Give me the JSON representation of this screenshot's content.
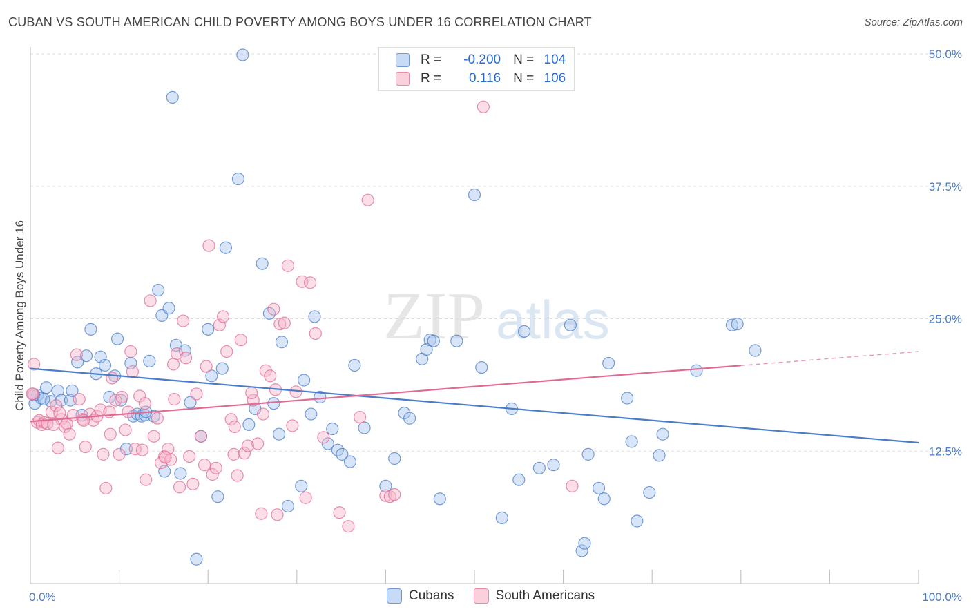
{
  "title": "CUBAN VS SOUTH AMERICAN CHILD POVERTY AMONG BOYS UNDER 16 CORRELATION CHART",
  "source": "Source: ZipAtlas.com",
  "watermark": {
    "zip": "ZIP",
    "atlas": "atlas"
  },
  "legend": {
    "rows": [
      {
        "r_label": "R =",
        "r_value": "-0.200",
        "n_label": "N =",
        "n_value": "104",
        "color": "#a8c6f0"
      },
      {
        "r_label": "R =",
        "r_value": "0.116",
        "n_label": "N =",
        "n_value": "106",
        "color": "#f7b6c9"
      }
    ]
  },
  "chart_data": {
    "type": "scatter",
    "title": "CUBAN VS SOUTH AMERICAN CHILD POVERTY AMONG BOYS UNDER 16 CORRELATION CHART",
    "xlabel": "",
    "ylabel": "Child Poverty Among Boys Under 16",
    "xlim": [
      0,
      100
    ],
    "ylim": [
      0,
      50
    ],
    "x_tick_labels": [
      "0.0%",
      "100.0%"
    ],
    "y_ticks": [
      12.5,
      25.0,
      37.5,
      50.0
    ],
    "y_tick_labels": [
      "12.5%",
      "25.0%",
      "37.5%",
      "50.0%"
    ],
    "grid": true,
    "legend_placement": "bottom",
    "series": [
      {
        "name": "Cubans",
        "color": "#4a7cc7",
        "fill": "#a8c6f0",
        "trend": {
          "x": [
            0,
            100
          ],
          "y": [
            20.3,
            13.3
          ],
          "solid_until": 100
        },
        "points": [
          [
            0.5,
            17.0
          ],
          [
            0.8,
            17.8
          ],
          [
            1.2,
            17.5
          ],
          [
            1.8,
            18.5
          ],
          [
            2.3,
            17.2
          ],
          [
            3.1,
            18.2
          ],
          [
            3.5,
            17.3
          ],
          [
            4.5,
            17.3
          ],
          [
            4.7,
            18.2
          ],
          [
            5.3,
            20.9
          ],
          [
            5.8,
            15.9
          ],
          [
            6.3,
            21.5
          ],
          [
            6.8,
            24.0
          ],
          [
            7.4,
            19.8
          ],
          [
            7.9,
            21.4
          ],
          [
            8.4,
            20.6
          ],
          [
            8.9,
            17.6
          ],
          [
            9.5,
            19.6
          ],
          [
            9.8,
            23.1
          ],
          [
            10.2,
            17.3
          ],
          [
            10.8,
            12.7
          ],
          [
            11.3,
            20.8
          ],
          [
            11.6,
            15.8
          ],
          [
            12.0,
            16.0
          ],
          [
            12.5,
            15.8
          ],
          [
            12.9,
            15.9
          ],
          [
            13.4,
            21.0
          ],
          [
            13.9,
            15.8
          ],
          [
            14.4,
            27.7
          ],
          [
            14.8,
            25.3
          ],
          [
            15.1,
            10.6
          ],
          [
            15.6,
            26.0
          ],
          [
            16.0,
            45.9
          ],
          [
            16.4,
            22.5
          ],
          [
            16.9,
            10.4
          ],
          [
            17.4,
            22.0
          ],
          [
            18.0,
            17.1
          ],
          [
            18.7,
            2.3
          ],
          [
            19.2,
            13.9
          ],
          [
            20.0,
            24.0
          ],
          [
            20.4,
            19.6
          ],
          [
            21.1,
            8.2
          ],
          [
            21.6,
            20.3
          ],
          [
            22.0,
            31.7
          ],
          [
            23.4,
            38.2
          ],
          [
            23.9,
            49.9
          ],
          [
            24.6,
            15.0
          ],
          [
            25.3,
            16.5
          ],
          [
            26.1,
            30.2
          ],
          [
            26.9,
            25.5
          ],
          [
            27.4,
            17.0
          ],
          [
            28.0,
            14.1
          ],
          [
            28.3,
            22.8
          ],
          [
            29.0,
            7.3
          ],
          [
            30.5,
            9.2
          ],
          [
            30.8,
            19.2
          ],
          [
            31.6,
            16.0
          ],
          [
            32.0,
            25.2
          ],
          [
            32.6,
            17.6
          ],
          [
            33.5,
            13.2
          ],
          [
            34.0,
            14.6
          ],
          [
            34.6,
            12.6
          ],
          [
            35.1,
            12.2
          ],
          [
            36.0,
            11.5
          ],
          [
            36.5,
            20.6
          ],
          [
            37.6,
            14.7
          ],
          [
            40.0,
            9.2
          ],
          [
            41.0,
            11.8
          ],
          [
            42.1,
            16.1
          ],
          [
            42.7,
            15.6
          ],
          [
            44.1,
            21.2
          ],
          [
            44.6,
            22.1
          ],
          [
            45.0,
            23.0
          ],
          [
            45.4,
            22.9
          ],
          [
            46.1,
            8.0
          ],
          [
            48.0,
            22.9
          ],
          [
            50.0,
            36.7
          ],
          [
            50.8,
            20.4
          ],
          [
            53.1,
            6.2
          ],
          [
            54.2,
            16.5
          ],
          [
            55.0,
            9.8
          ],
          [
            55.6,
            23.8
          ],
          [
            57.3,
            10.9
          ],
          [
            58.9,
            11.2
          ],
          [
            60.8,
            24.4
          ],
          [
            62.1,
            3.1
          ],
          [
            62.4,
            3.8
          ],
          [
            62.8,
            12.2
          ],
          [
            64.0,
            9.0
          ],
          [
            64.6,
            8.0
          ],
          [
            65.1,
            20.8
          ],
          [
            67.2,
            17.5
          ],
          [
            67.7,
            13.4
          ],
          [
            68.3,
            5.9
          ],
          [
            69.7,
            8.6
          ],
          [
            70.8,
            12.1
          ],
          [
            71.2,
            14.1
          ],
          [
            75.0,
            20.1
          ],
          [
            79.0,
            24.4
          ],
          [
            79.6,
            24.5
          ],
          [
            81.6,
            22.0
          ],
          [
            0.4,
            17.8
          ],
          [
            1.5,
            17.4
          ],
          [
            13.0,
            16.2
          ]
        ]
      },
      {
        "name": "South Americans",
        "color": "#e06a94",
        "fill": "#f7b6c9",
        "trend": {
          "x": [
            0,
            100
          ],
          "y": [
            15.3,
            21.9
          ],
          "solid_until": 80
        },
        "points": [
          [
            0.3,
            17.9
          ],
          [
            0.4,
            20.7
          ],
          [
            0.8,
            15.2
          ],
          [
            1.0,
            15.4
          ],
          [
            1.3,
            15.0
          ],
          [
            1.6,
            15.2
          ],
          [
            1.9,
            15.1
          ],
          [
            2.4,
            16.2
          ],
          [
            2.9,
            16.8
          ],
          [
            3.1,
            12.8
          ],
          [
            3.5,
            15.5
          ],
          [
            3.9,
            14.8
          ],
          [
            4.1,
            15.1
          ],
          [
            4.4,
            14.1
          ],
          [
            4.8,
            15.9
          ],
          [
            5.2,
            21.6
          ],
          [
            5.5,
            17.4
          ],
          [
            5.9,
            15.5
          ],
          [
            6.2,
            12.9
          ],
          [
            6.7,
            16.0
          ],
          [
            7.1,
            15.4
          ],
          [
            7.5,
            15.8
          ],
          [
            7.9,
            16.4
          ],
          [
            8.2,
            12.2
          ],
          [
            8.5,
            9.0
          ],
          [
            8.9,
            16.2
          ],
          [
            9.2,
            19.4
          ],
          [
            9.6,
            17.3
          ],
          [
            10.0,
            12.2
          ],
          [
            10.3,
            17.6
          ],
          [
            10.7,
            14.5
          ],
          [
            11.0,
            16.2
          ],
          [
            11.3,
            21.9
          ],
          [
            11.8,
            12.7
          ],
          [
            12.3,
            17.7
          ],
          [
            12.6,
            12.6
          ],
          [
            13.0,
            9.8
          ],
          [
            13.5,
            26.7
          ],
          [
            13.9,
            13.9
          ],
          [
            14.3,
            15.6
          ],
          [
            14.7,
            11.4
          ],
          [
            15.1,
            12.0
          ],
          [
            15.5,
            12.7
          ],
          [
            15.8,
            11.7
          ],
          [
            16.2,
            17.4
          ],
          [
            16.5,
            21.7
          ],
          [
            16.8,
            9.1
          ],
          [
            17.2,
            24.8
          ],
          [
            17.5,
            21.3
          ],
          [
            17.9,
            12.0
          ],
          [
            18.3,
            9.4
          ],
          [
            18.7,
            17.9
          ],
          [
            19.2,
            13.9
          ],
          [
            19.6,
            11.2
          ],
          [
            20.1,
            31.9
          ],
          [
            20.5,
            10.3
          ],
          [
            20.9,
            10.9
          ],
          [
            21.3,
            24.4
          ],
          [
            21.7,
            25.2
          ],
          [
            22.1,
            21.9
          ],
          [
            22.6,
            15.5
          ],
          [
            22.9,
            12.2
          ],
          [
            23.3,
            10.2
          ],
          [
            23.7,
            23.0
          ],
          [
            24.1,
            12.3
          ],
          [
            24.5,
            13.0
          ],
          [
            25.1,
            17.3
          ],
          [
            25.6,
            13.2
          ],
          [
            26.0,
            6.6
          ],
          [
            26.5,
            20.1
          ],
          [
            27.0,
            19.6
          ],
          [
            27.4,
            25.9
          ],
          [
            27.8,
            6.5
          ],
          [
            28.1,
            24.5
          ],
          [
            28.6,
            24.6
          ],
          [
            29.0,
            30.0
          ],
          [
            29.5,
            14.9
          ],
          [
            29.9,
            18.1
          ],
          [
            30.6,
            28.5
          ],
          [
            31.0,
            8.1
          ],
          [
            31.5,
            28.4
          ],
          [
            32.1,
            23.6
          ],
          [
            33.0,
            13.8
          ],
          [
            34.8,
            6.7
          ],
          [
            35.8,
            5.4
          ],
          [
            37.1,
            15.7
          ],
          [
            38.0,
            36.2
          ],
          [
            40.0,
            8.3
          ],
          [
            40.5,
            8.2
          ],
          [
            41.0,
            8.4
          ],
          [
            51.0,
            45.0
          ],
          [
            61.0,
            9.2
          ],
          [
            0.2,
            17.9
          ],
          [
            2.6,
            15.0
          ],
          [
            3.3,
            16.1
          ],
          [
            6.0,
            15.4
          ],
          [
            9.0,
            14.1
          ],
          [
            11.5,
            20.0
          ],
          [
            12.9,
            17.0
          ],
          [
            15.2,
            11.9
          ],
          [
            16.1,
            20.7
          ],
          [
            19.8,
            20.5
          ],
          [
            23.0,
            14.8
          ],
          [
            24.9,
            18.0
          ],
          [
            26.2,
            16.0
          ],
          [
            27.6,
            18.3
          ]
        ]
      }
    ]
  }
}
